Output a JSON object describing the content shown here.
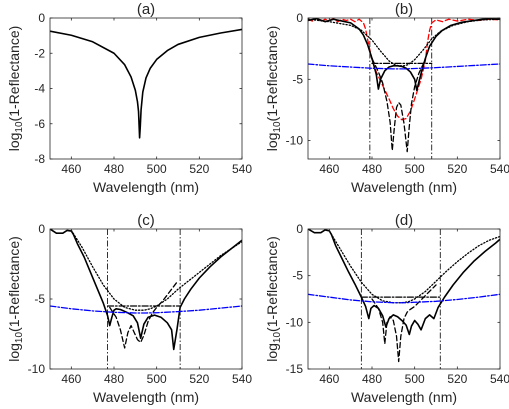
{
  "chart_data": [
    {
      "type": "line",
      "title": "(a)",
      "xlabel": "Wavelength (nm)",
      "ylabel": "log10(1-Reflectance)",
      "xlim": [
        450,
        540
      ],
      "ylim": [
        -8,
        0
      ],
      "xticks": [
        460,
        480,
        500,
        520,
        540
      ],
      "yticks": [
        0,
        -2,
        -4,
        -6,
        -8
      ],
      "grid": false,
      "series": [
        {
          "color": "#000000",
          "dash": "solid",
          "x": [
            450,
            460,
            470,
            480,
            485,
            488,
            490,
            491,
            491.5,
            492,
            492.3,
            492.7,
            493.5,
            495,
            497,
            500,
            505,
            510,
            520,
            530,
            540
          ],
          "y": [
            -0.75,
            -0.98,
            -1.35,
            -2.0,
            -2.65,
            -3.35,
            -4.1,
            -4.75,
            -5.3,
            -6.8,
            -6.2,
            -5.2,
            -4.2,
            -3.4,
            -2.85,
            -2.35,
            -1.85,
            -1.5,
            -1.1,
            -0.85,
            -0.65
          ]
        }
      ]
    },
    {
      "type": "line",
      "title": "(b)",
      "xlabel": "Wavelength (nm)",
      "ylabel": "log10(1-Reflectance)",
      "xlim": [
        450,
        540
      ],
      "ylim": [
        -11.5,
        0
      ],
      "xticks": [
        460,
        480,
        500,
        520,
        540
      ],
      "yticks": [
        0,
        -5,
        -10
      ],
      "vlines": [
        479,
        508
      ],
      "grid": false,
      "series": [
        {
          "color": "#ff0000",
          "dash": "dashed",
          "x": [
            450,
            452,
            454,
            456,
            458,
            460,
            462,
            464,
            466,
            468,
            470,
            472,
            474,
            476,
            477,
            478,
            480,
            482,
            485,
            488,
            490,
            492,
            494,
            496,
            498,
            500,
            503,
            505,
            506,
            507,
            508,
            510,
            513,
            516,
            520,
            525,
            530,
            535,
            540
          ],
          "y": [
            -0.1,
            -0.25,
            -0.05,
            -0.3,
            -0.1,
            -0.2,
            -0.05,
            -0.3,
            -0.1,
            -0.2,
            -0.1,
            -0.3,
            -0.1,
            -0.4,
            -0.9,
            -1.8,
            -3.4,
            -4.4,
            -5.5,
            -6.6,
            -7.4,
            -8.0,
            -8.3,
            -8.2,
            -7.6,
            -6.6,
            -5.0,
            -3.5,
            -2.0,
            -1.0,
            -0.4,
            -0.15,
            -0.3,
            -0.1,
            -0.25,
            -0.1,
            -0.2,
            -0.1,
            -0.15
          ]
        },
        {
          "color": "#000000",
          "dash": "solid",
          "x": [
            450,
            454,
            458,
            462,
            466,
            470,
            474,
            476,
            478,
            480,
            482,
            483,
            484,
            486,
            488,
            490,
            492,
            494,
            496,
            498,
            500,
            501,
            502,
            503.5,
            505,
            507,
            510,
            513,
            517,
            522,
            528,
            534,
            540
          ],
          "y": [
            -0.2,
            -0.05,
            -0.3,
            -0.1,
            -0.25,
            -0.4,
            -0.9,
            -1.4,
            -2.2,
            -3.3,
            -4.6,
            -5.8,
            -5.0,
            -4.3,
            -4.0,
            -3.9,
            -3.9,
            -3.95,
            -4.1,
            -4.4,
            -5.0,
            -5.9,
            -5.2,
            -4.2,
            -3.3,
            -2.3,
            -1.5,
            -1.0,
            -0.6,
            -0.35,
            -0.2,
            -0.05,
            -0.1
          ]
        },
        {
          "color": "#000000",
          "dash": "dashed",
          "x": [
            480,
            483,
            485,
            487,
            488.5,
            489.5,
            490.5,
            491.5,
            492.5,
            493.5,
            495,
            496.5,
            497.5,
            498.5,
            500,
            502,
            505
          ],
          "y": [
            -3.3,
            -4.4,
            -5.3,
            -6.8,
            -8.5,
            -10.8,
            -8.9,
            -7.3,
            -6.9,
            -7.1,
            -8.6,
            -10.9,
            -8.8,
            -7.0,
            -5.6,
            -4.5,
            -3.4
          ]
        },
        {
          "color": "#000000",
          "dash": "dotted",
          "x": [
            450,
            460,
            470,
            475,
            480,
            484,
            488,
            491,
            493,
            495,
            497,
            500,
            504,
            508,
            512,
            518,
            525,
            532,
            540
          ],
          "y": [
            -0.1,
            -0.3,
            -0.6,
            -1.0,
            -1.8,
            -2.7,
            -3.5,
            -3.85,
            -3.9,
            -3.9,
            -3.8,
            -3.4,
            -2.6,
            -1.7,
            -1.1,
            -0.6,
            -0.3,
            -0.15,
            -0.1
          ]
        },
        {
          "color": "#0000ff",
          "dash": "dashdot",
          "x": [
            450,
            460,
            470,
            480,
            490,
            495,
            500,
            510,
            520,
            530,
            540
          ],
          "y": [
            -3.75,
            -3.9,
            -4.0,
            -4.1,
            -4.15,
            -4.15,
            -4.12,
            -4.05,
            -3.95,
            -3.85,
            -3.75
          ]
        },
        {
          "color": "#000000",
          "dash": "dashdot",
          "x": [
            480,
            508
          ],
          "y": [
            -3.7,
            -3.7
          ]
        }
      ]
    },
    {
      "type": "line",
      "title": "(c)",
      "xlabel": "Wavelength (nm)",
      "ylabel": "log10(1-Reflectance)",
      "xlim": [
        450,
        540
      ],
      "ylim": [
        -10,
        0
      ],
      "xticks": [
        460,
        480,
        500,
        520,
        540
      ],
      "yticks": [
        0,
        -5,
        -10
      ],
      "vlines": [
        477,
        511
      ],
      "grid": false,
      "series": [
        {
          "color": "#000000",
          "dash": "solid",
          "x": [
            450,
            453,
            456,
            458,
            460,
            461,
            463,
            466,
            469,
            472,
            475,
            477,
            478,
            479,
            480,
            481,
            483,
            486,
            489,
            491,
            492.5,
            494,
            496,
            499,
            502,
            505,
            507,
            508,
            509.5,
            511,
            513,
            516,
            520,
            525,
            530,
            535,
            540
          ],
          "y": [
            0,
            -0.3,
            -0.3,
            -0.1,
            -0.15,
            -0.4,
            -1.1,
            -2.0,
            -3.1,
            -4.2,
            -5.3,
            -6.2,
            -6.9,
            -6.3,
            -5.8,
            -5.7,
            -5.75,
            -5.95,
            -6.2,
            -6.7,
            -7.8,
            -6.8,
            -6.3,
            -6.15,
            -6.3,
            -6.7,
            -7.2,
            -8.6,
            -7.2,
            -5.6,
            -5.0,
            -4.3,
            -3.5,
            -2.7,
            -2.0,
            -1.4,
            -0.8
          ]
        },
        {
          "color": "#000000",
          "dash": "dashed",
          "x": [
            478,
            481,
            483,
            485,
            486.5,
            488,
            489.5,
            491,
            492.5,
            494,
            496,
            498,
            500,
            503,
            506,
            510
          ],
          "y": [
            -5.6,
            -6.3,
            -7.2,
            -8.5,
            -7.4,
            -6.9,
            -7.4,
            -7.9,
            -8.1,
            -7.6,
            -6.6,
            -6.0,
            -5.6,
            -5.1,
            -4.5,
            -3.7
          ]
        },
        {
          "color": "#000000",
          "dash": "dotted",
          "x": [
            460,
            465,
            470,
            475,
            480,
            485,
            490,
            494,
            497,
            500,
            505,
            510,
            515,
            520,
            525,
            530,
            535,
            540
          ],
          "y": [
            -0.1,
            -1.3,
            -2.7,
            -4.0,
            -5.0,
            -5.6,
            -5.8,
            -5.8,
            -5.7,
            -5.5,
            -5.0,
            -4.3,
            -3.7,
            -3.1,
            -2.5,
            -1.9,
            -1.4,
            -0.9
          ]
        },
        {
          "color": "#0000ff",
          "dash": "dashdot",
          "x": [
            450,
            460,
            470,
            480,
            490,
            495,
            500,
            510,
            520,
            530,
            540
          ],
          "y": [
            -5.5,
            -5.7,
            -5.85,
            -5.95,
            -6.0,
            -6.0,
            -5.98,
            -5.9,
            -5.8,
            -5.65,
            -5.5
          ]
        },
        {
          "color": "#000000",
          "dash": "dashdot",
          "x": [
            477,
            511
          ],
          "y": [
            -5.5,
            -5.5
          ]
        }
      ]
    },
    {
      "type": "line",
      "title": "(d)",
      "xlabel": "Wavelength (nm)",
      "ylabel": "log10(1-Reflectance)",
      "xlim": [
        450,
        540
      ],
      "ylim": [
        -15,
        0
      ],
      "xticks": [
        460,
        480,
        500,
        520,
        540
      ],
      "yticks": [
        0,
        -5,
        -10,
        -15
      ],
      "vlines": [
        475,
        512
      ],
      "grid": false,
      "series": [
        {
          "color": "#000000",
          "dash": "solid",
          "x": [
            450,
            453,
            456,
            458,
            460,
            461,
            463,
            466,
            469,
            472,
            475,
            477,
            478.5,
            479.5,
            481,
            483,
            485,
            486.5,
            488,
            490,
            492,
            494,
            496,
            497.5,
            498.5,
            500,
            501.5,
            503,
            505,
            507,
            509,
            511,
            514,
            518,
            523,
            528,
            533,
            538,
            540
          ],
          "y": [
            0,
            -0.4,
            -0.4,
            -0.1,
            -0.2,
            -0.6,
            -1.8,
            -3.2,
            -4.6,
            -5.9,
            -7.3,
            -8.3,
            -9.6,
            -8.5,
            -8.2,
            -8.5,
            -9.3,
            -10.5,
            -9.6,
            -9.2,
            -9.4,
            -9.8,
            -10.3,
            -11.3,
            -10.4,
            -9.8,
            -10.2,
            -10.8,
            -9.6,
            -9.2,
            -9.6,
            -8.4,
            -7.3,
            -6.0,
            -4.6,
            -3.4,
            -2.4,
            -1.5,
            -1.1
          ]
        },
        {
          "color": "#000000",
          "dash": "dashed",
          "x": [
            480,
            483,
            485,
            486,
            487,
            488.5,
            490,
            491.5,
            492.5,
            493.5,
            495,
            496.5,
            498,
            500,
            503,
            506,
            510
          ],
          "y": [
            -7.5,
            -8.5,
            -10.0,
            -12.3,
            -10.0,
            -9.4,
            -9.8,
            -11.5,
            -14.2,
            -11.5,
            -9.6,
            -8.9,
            -8.6,
            -8.3,
            -7.6,
            -6.9,
            -6.0
          ]
        },
        {
          "color": "#000000",
          "dash": "dotted",
          "x": [
            460,
            465,
            470,
            475,
            480,
            485,
            490,
            494,
            497,
            500,
            505,
            510,
            515,
            520,
            525,
            530,
            535,
            540
          ],
          "y": [
            -0.2,
            -2.1,
            -4.0,
            -5.7,
            -7.0,
            -7.7,
            -7.9,
            -7.9,
            -7.8,
            -7.5,
            -6.7,
            -5.6,
            -4.5,
            -3.5,
            -2.6,
            -1.8,
            -1.2,
            -0.8
          ]
        },
        {
          "color": "#0000ff",
          "dash": "dashdot",
          "x": [
            450,
            460,
            470,
            480,
            490,
            495,
            500,
            510,
            520,
            530,
            540
          ],
          "y": [
            -7.0,
            -7.3,
            -7.6,
            -7.8,
            -7.9,
            -7.9,
            -7.85,
            -7.75,
            -7.55,
            -7.3,
            -7.0
          ]
        },
        {
          "color": "#000000",
          "dash": "dashdot",
          "x": [
            475,
            512
          ],
          "y": [
            -7.3,
            -7.3
          ]
        }
      ]
    }
  ]
}
